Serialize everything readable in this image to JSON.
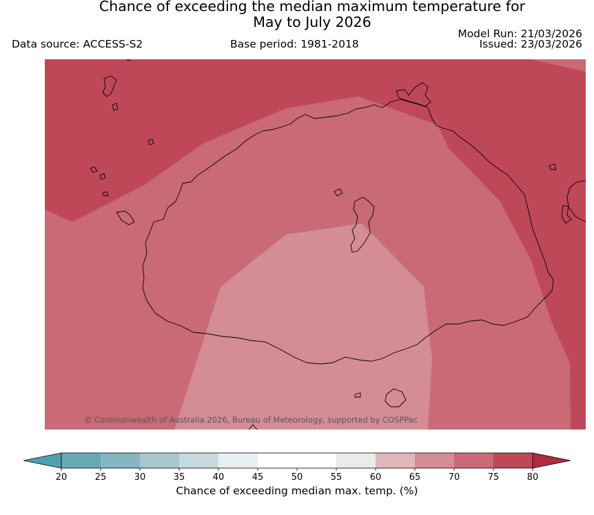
{
  "header": {
    "title_line1": "Chance of exceeding the median maximum temperature for",
    "title_line2": "May to July 2026",
    "data_source": "Data source: ACCESS-S2",
    "base_period": "Base period: 1981-2018",
    "model_run": "Model Run: 21/03/2026",
    "issued": "Issued: 23/03/2026"
  },
  "map": {
    "copyright": "© Commonwealth of Australia 2026, Bureau of Meteorology, supported by COSPPac",
    "bands": [
      {
        "range": "75-80",
        "color": "#bf4858"
      },
      {
        "range": "70-75",
        "color": "#c96a76"
      },
      {
        "range": "65-70",
        "color": "#d48c95"
      }
    ]
  },
  "colorbar": {
    "label": "Chance of exceeding median max. temp. (%)",
    "ticks": [
      "20",
      "25",
      "30",
      "35",
      "40",
      "45",
      "50",
      "55",
      "60",
      "65",
      "70",
      "75",
      "80"
    ],
    "segment_colors": [
      "#67aab7",
      "#86b6c1",
      "#a6c7cd",
      "#c6d9dc",
      "#e9f0f2",
      "#ffffff",
      "#ffffff",
      "#ebebeb",
      "#e1b7bc",
      "#d48c95",
      "#c96a76",
      "#bf4858"
    ],
    "low_extend_color": "#4ea1b0",
    "high_extend_color": "#b02a40"
  }
}
